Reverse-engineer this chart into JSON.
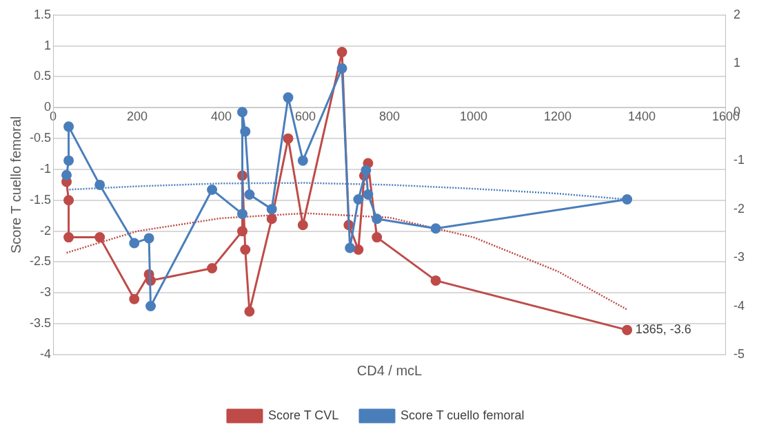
{
  "chart_data": {
    "type": "line",
    "xlabel": "CD4 / mcL",
    "ylabel": "Score T cuello femoral",
    "x": [
      32,
      37,
      37,
      111,
      193,
      228,
      232,
      378,
      450,
      450,
      457,
      467,
      520,
      559,
      594,
      687,
      703,
      726,
      740,
      749,
      770,
      910,
      1365
    ],
    "series": [
      {
        "name": "Score T CVL",
        "color": "#be4b48",
        "values": [
          -1.2,
          -1.5,
          -2.1,
          -2.1,
          -3.1,
          -2.7,
          -2.8,
          -2.6,
          -2.0,
          -1.1,
          -2.3,
          -3.3,
          -1.8,
          -0.5,
          -1.9,
          0.9,
          -1.9,
          -2.3,
          -1.1,
          -0.9,
          -2.1,
          -2.8,
          -3.6
        ]
      },
      {
        "name": "Score T cuello femoral",
        "color": "#4a7ebb",
        "axis": "y2",
        "x": [
          32,
          37,
          37,
          111,
          193,
          228,
          232,
          378,
          450,
          450,
          457,
          467,
          520,
          559,
          594,
          687,
          706,
          726,
          744,
          749,
          770,
          910,
          1365
        ],
        "values": [
          -1.3,
          -1.0,
          -0.3,
          -1.5,
          -2.7,
          -2.6,
          -4.0,
          -1.6,
          -2.1,
          0.0,
          -0.4,
          -1.7,
          -2.0,
          0.3,
          -1.0,
          0.9,
          -2.8,
          -1.8,
          -1.2,
          -1.7,
          -2.2,
          -2.4,
          -1.8
        ]
      },
      {
        "color": "#be4b48",
        "marker": "none",
        "line_style": "dotted",
        "x": [
          32,
          200,
          400,
          600,
          800,
          1000,
          1200,
          1365
        ],
        "values": [
          -2.35,
          -2.0,
          -1.79,
          -1.71,
          -1.78,
          -2.1,
          -2.65,
          -3.27
        ]
      },
      {
        "color": "#4a7ebb",
        "marker": "none",
        "line_style": "dotted",
        "axis": "y2",
        "x": [
          32,
          200,
          400,
          600,
          800,
          1000,
          1200,
          1365
        ],
        "values": [
          -1.6,
          -1.53,
          -1.47,
          -1.46,
          -1.5,
          -1.58,
          -1.68,
          -1.8
        ]
      }
    ],
    "xlim": [
      0,
      1600
    ],
    "xticks": [
      0,
      200,
      400,
      600,
      800,
      1000,
      1200,
      1400,
      1600
    ],
    "ylim": [
      -4,
      1.5
    ],
    "yticks": [
      -4,
      -3.5,
      -3,
      -2.5,
      -2,
      -1.5,
      -1,
      -0.5,
      0,
      0.5,
      1,
      1.5
    ],
    "y2lim": [
      -5,
      2
    ],
    "y2ticks": [
      -5,
      -4,
      -3,
      -2,
      -1,
      0,
      1,
      2
    ],
    "grid": "y",
    "legend": "bottom",
    "marker": "circle",
    "line_style": "solid",
    "annotations": [
      {
        "text": "1365, -3.6",
        "x": 1365,
        "y": -3.6
      }
    ]
  }
}
